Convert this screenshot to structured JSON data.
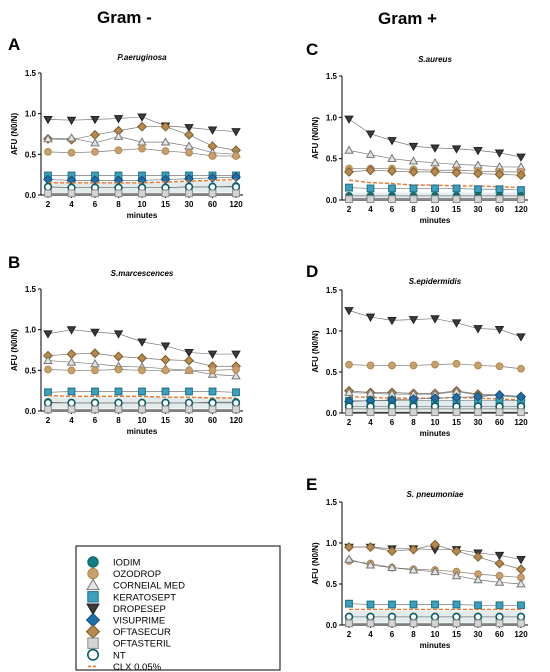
{
  "group_titles": {
    "left": "Gram -",
    "right": "Gram +"
  },
  "legend": {
    "items": [
      {
        "key": "IODIM",
        "label": "IODIM",
        "marker": "circle",
        "fill": "#127f84",
        "stroke": "#0d5e62"
      },
      {
        "key": "OZODROP",
        "label": "OZODROP",
        "marker": "circle",
        "fill": "#caa06a",
        "stroke": "#b08a56"
      },
      {
        "key": "CORNEIAL MED",
        "label": "CORNEIAL MED",
        "marker": "triangle-up",
        "fill": "#e3e3e3",
        "stroke": "#777777"
      },
      {
        "key": "KERATOSEPT",
        "label": "KERATOSEPT",
        "marker": "square",
        "fill": "#3aa0bd",
        "stroke": "#1d6f86"
      },
      {
        "key": "DROPESEP",
        "label": "DROPESEP",
        "marker": "triangle-down",
        "fill": "#3a3a3a",
        "stroke": "#222222"
      },
      {
        "key": "VISUPRIME",
        "label": "VISUPRIME",
        "marker": "diamond",
        "fill": "#1f6fa8",
        "stroke": "#164f78"
      },
      {
        "key": "OFTASECUR",
        "label": "OFTASECUR",
        "marker": "diamond",
        "fill": "#b58a4c",
        "stroke": "#7d5c2c"
      },
      {
        "key": "OFTASTERIL",
        "label": "OFTASTERIL",
        "marker": "square",
        "fill": "#d4d4d4",
        "stroke": "#8a8a8a"
      },
      {
        "key": "NT",
        "label": "NT",
        "marker": "circle-open",
        "fill": "#ffffff",
        "stroke": "#0d5e62"
      },
      {
        "key": "CLX 0.05%",
        "label": "CLX 0.05%",
        "marker": "dash",
        "fill": "none",
        "stroke": "#e8782f"
      }
    ]
  },
  "chart_data": [
    {
      "panel": "A",
      "title": "P.aeruginosa",
      "type": "line",
      "xlabel": "minutes",
      "ylabel": "AFU (N0/N)",
      "categories": [
        "2",
        "4",
        "6",
        "8",
        "10",
        "15",
        "30",
        "60",
        "120"
      ],
      "ylim": [
        0,
        1.5
      ],
      "yticks": [
        "0.0",
        "0.5",
        "1.0",
        "1.5"
      ],
      "series": [
        {
          "name": "DROPESEP",
          "values": [
            0.93,
            0.92,
            0.93,
            0.94,
            0.96,
            0.85,
            0.83,
            0.8,
            0.78
          ]
        },
        {
          "name": "OFTASECUR",
          "values": [
            0.69,
            0.68,
            0.74,
            0.79,
            0.84,
            0.84,
            0.74,
            0.6,
            0.55
          ]
        },
        {
          "name": "CORNEIAL MED",
          "values": [
            0.69,
            0.7,
            0.64,
            0.72,
            0.65,
            0.65,
            0.6,
            0.52,
            0.5
          ]
        },
        {
          "name": "OZODROP",
          "values": [
            0.53,
            0.52,
            0.53,
            0.55,
            0.57,
            0.54,
            0.52,
            0.48,
            0.48
          ]
        },
        {
          "name": "KERATOSEPT",
          "values": [
            0.24,
            0.24,
            0.24,
            0.24,
            0.24,
            0.24,
            0.24,
            0.24,
            0.24
          ]
        },
        {
          "name": "VISUPRIME",
          "values": [
            0.19,
            0.18,
            0.18,
            0.18,
            0.18,
            0.19,
            0.2,
            0.21,
            0.22
          ]
        },
        {
          "name": "CLX 0.05%",
          "values": [
            0.15,
            0.15,
            0.15,
            0.15,
            0.15,
            0.16,
            0.17,
            0.18,
            0.19
          ]
        },
        {
          "name": "IODIM",
          "values": [
            0.1,
            0.09,
            0.09,
            0.09,
            0.09,
            0.09,
            0.1,
            0.1,
            0.11
          ]
        },
        {
          "name": "NT",
          "values": [
            0.1,
            0.09,
            0.09,
            0.09,
            0.09,
            0.09,
            0.1,
            0.1,
            0.1
          ]
        },
        {
          "name": "OFTASTERIL",
          "values": [
            0.02,
            0.02,
            0.02,
            0.02,
            0.02,
            0.02,
            0.02,
            0.02,
            0.02
          ]
        }
      ]
    },
    {
      "panel": "B",
      "title": "S.marcescences",
      "type": "line",
      "xlabel": "minutes",
      "ylabel": "AFU (N0/N)",
      "categories": [
        "2",
        "4",
        "6",
        "8",
        "10",
        "15",
        "30",
        "60",
        "120"
      ],
      "ylim": [
        0,
        1.5
      ],
      "yticks": [
        "0.0",
        "0.5",
        "1.0",
        "1.5"
      ],
      "series": [
        {
          "name": "DROPESEP",
          "values": [
            0.95,
            1.0,
            0.97,
            0.95,
            0.85,
            0.8,
            0.72,
            0.7,
            0.7
          ]
        },
        {
          "name": "OFTASECUR",
          "values": [
            0.68,
            0.7,
            0.71,
            0.67,
            0.65,
            0.63,
            0.62,
            0.55,
            0.55
          ]
        },
        {
          "name": "CORNEIAL MED",
          "values": [
            0.62,
            0.6,
            0.58,
            0.55,
            0.54,
            0.52,
            0.5,
            0.45,
            0.43
          ]
        },
        {
          "name": "OZODROP",
          "values": [
            0.51,
            0.5,
            0.5,
            0.51,
            0.5,
            0.5,
            0.5,
            0.5,
            0.51
          ]
        },
        {
          "name": "KERATOSEPT",
          "values": [
            0.23,
            0.24,
            0.24,
            0.24,
            0.24,
            0.24,
            0.24,
            0.24,
            0.23
          ]
        },
        {
          "name": "CLX 0.05%",
          "values": [
            0.19,
            0.18,
            0.18,
            0.18,
            0.18,
            0.17,
            0.17,
            0.16,
            0.16
          ]
        },
        {
          "name": "IODIM",
          "values": [
            0.11,
            0.1,
            0.1,
            0.1,
            0.1,
            0.1,
            0.1,
            0.11,
            0.11
          ]
        },
        {
          "name": "NT",
          "values": [
            0.1,
            0.1,
            0.1,
            0.1,
            0.1,
            0.1,
            0.1,
            0.1,
            0.1
          ]
        },
        {
          "name": "OFTASTERIL",
          "values": [
            0.02,
            0.02,
            0.02,
            0.02,
            0.02,
            0.02,
            0.02,
            0.02,
            0.02
          ]
        }
      ]
    },
    {
      "panel": "C",
      "title": "S.aureus",
      "type": "line",
      "xlabel": "minutes",
      "ylabel": "AFU (N0/N)",
      "categories": [
        "2",
        "4",
        "6",
        "8",
        "10",
        "15",
        "30",
        "60",
        "120"
      ],
      "ylim": [
        0,
        1.5
      ],
      "yticks": [
        "0.0",
        "0.5",
        "1.0",
        "1.5"
      ],
      "series": [
        {
          "name": "DROPESEP",
          "values": [
            0.98,
            0.8,
            0.72,
            0.65,
            0.63,
            0.62,
            0.6,
            0.57,
            0.52
          ]
        },
        {
          "name": "CORNEIAL MED",
          "values": [
            0.6,
            0.55,
            0.5,
            0.47,
            0.45,
            0.43,
            0.42,
            0.4,
            0.4
          ]
        },
        {
          "name": "OZODROP",
          "values": [
            0.38,
            0.38,
            0.38,
            0.37,
            0.36,
            0.36,
            0.35,
            0.34,
            0.34
          ]
        },
        {
          "name": "OFTASECUR",
          "values": [
            0.34,
            0.36,
            0.35,
            0.34,
            0.34,
            0.33,
            0.32,
            0.31,
            0.3
          ]
        },
        {
          "name": "CLX 0.05%",
          "values": [
            0.24,
            0.21,
            0.2,
            0.18,
            0.18,
            0.17,
            0.17,
            0.16,
            0.15
          ]
        },
        {
          "name": "KERATOSEPT",
          "values": [
            0.15,
            0.14,
            0.14,
            0.14,
            0.14,
            0.14,
            0.13,
            0.13,
            0.12
          ]
        },
        {
          "name": "IODIM",
          "values": [
            0.05,
            0.05,
            0.05,
            0.05,
            0.05,
            0.05,
            0.05,
            0.05,
            0.05
          ]
        },
        {
          "name": "NT",
          "values": [
            0.02,
            0.02,
            0.02,
            0.02,
            0.02,
            0.02,
            0.02,
            0.02,
            0.02
          ]
        },
        {
          "name": "OFTASTERIL",
          "values": [
            0.01,
            0.01,
            0.01,
            0.01,
            0.01,
            0.01,
            0.01,
            0.01,
            0.01
          ]
        }
      ]
    },
    {
      "panel": "D",
      "title": "S.epidermidis",
      "type": "line",
      "xlabel": "minutes",
      "ylabel": "AFU (N0/N)",
      "categories": [
        "2",
        "4",
        "6",
        "8",
        "10",
        "15",
        "30",
        "60",
        "120"
      ],
      "ylim": [
        0,
        1.5
      ],
      "yticks": [
        "0.0",
        "0.5",
        "1.0",
        "1.5"
      ],
      "series": [
        {
          "name": "DROPESEP",
          "values": [
            1.25,
            1.17,
            1.13,
            1.14,
            1.15,
            1.1,
            1.03,
            1.02,
            0.93
          ]
        },
        {
          "name": "OZODROP",
          "values": [
            0.59,
            0.58,
            0.58,
            0.58,
            0.59,
            0.6,
            0.58,
            0.57,
            0.54
          ]
        },
        {
          "name": "OFTASECUR",
          "values": [
            0.27,
            0.25,
            0.25,
            0.24,
            0.24,
            0.27,
            0.23,
            0.22,
            0.2
          ]
        },
        {
          "name": "CORNEIAL MED",
          "values": [
            0.25,
            0.24,
            0.23,
            0.23,
            0.23,
            0.26,
            0.22,
            0.21,
            0.19
          ]
        },
        {
          "name": "CLX 0.05%",
          "values": [
            0.2,
            0.19,
            0.18,
            0.18,
            0.18,
            0.19,
            0.18,
            0.17,
            0.16
          ]
        },
        {
          "name": "KERATOSEPT",
          "values": [
            0.15,
            0.15,
            0.15,
            0.15,
            0.15,
            0.15,
            0.15,
            0.15,
            0.15
          ]
        },
        {
          "name": "VISUPRIME",
          "values": [
            0.14,
            0.15,
            0.16,
            0.17,
            0.18,
            0.19,
            0.2,
            0.22,
            0.2
          ]
        },
        {
          "name": "IODIM",
          "values": [
            0.05,
            0.05,
            0.05,
            0.05,
            0.05,
            0.05,
            0.05,
            0.05,
            0.05
          ]
        },
        {
          "name": "NT",
          "values": [
            0.08,
            0.08,
            0.08,
            0.08,
            0.08,
            0.08,
            0.08,
            0.08,
            0.08
          ]
        },
        {
          "name": "OFTASTERIL",
          "values": [
            0.01,
            0.01,
            0.01,
            0.01,
            0.01,
            0.01,
            0.01,
            0.01,
            0.01
          ]
        }
      ]
    },
    {
      "panel": "E",
      "title": "S. pneumoniae",
      "type": "line",
      "xlabel": "minutes",
      "ylabel": "AFU (N0/N)",
      "categories": [
        "2",
        "4",
        "6",
        "8",
        "10",
        "15",
        "30",
        "60",
        "120"
      ],
      "ylim": [
        0,
        1.5
      ],
      "yticks": [
        "0.0",
        "0.5",
        "1.0",
        "1.5"
      ],
      "series": [
        {
          "name": "DROPESEP",
          "values": [
            0.95,
            0.95,
            0.93,
            0.93,
            0.92,
            0.92,
            0.88,
            0.85,
            0.8
          ]
        },
        {
          "name": "OFTASECUR",
          "values": [
            0.95,
            0.95,
            0.9,
            0.92,
            0.98,
            0.9,
            0.83,
            0.75,
            0.68
          ]
        },
        {
          "name": "OZODROP",
          "values": [
            0.78,
            0.75,
            0.7,
            0.68,
            0.67,
            0.65,
            0.62,
            0.6,
            0.58
          ]
        },
        {
          "name": "CORNEIAL MED",
          "values": [
            0.8,
            0.73,
            0.7,
            0.67,
            0.65,
            0.6,
            0.55,
            0.52,
            0.5
          ]
        },
        {
          "name": "KERATOSEPT",
          "values": [
            0.26,
            0.25,
            0.25,
            0.25,
            0.25,
            0.25,
            0.24,
            0.24,
            0.24
          ]
        },
        {
          "name": "CLX 0.05%",
          "values": [
            0.19,
            0.19,
            0.19,
            0.19,
            0.19,
            0.19,
            0.19,
            0.19,
            0.19
          ]
        },
        {
          "name": "IODIM",
          "values": [
            0.1,
            0.1,
            0.1,
            0.1,
            0.1,
            0.1,
            0.1,
            0.1,
            0.1
          ]
        },
        {
          "name": "NT",
          "values": [
            0.1,
            0.1,
            0.1,
            0.1,
            0.1,
            0.1,
            0.1,
            0.1,
            0.1
          ]
        },
        {
          "name": "OFTASTERIL",
          "values": [
            0.02,
            0.02,
            0.02,
            0.02,
            0.02,
            0.02,
            0.02,
            0.02,
            0.02
          ]
        }
      ]
    }
  ]
}
